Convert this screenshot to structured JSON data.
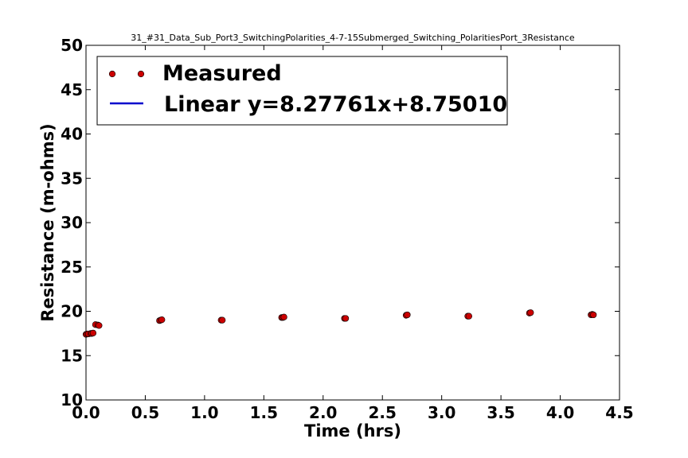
{
  "chart_data": {
    "type": "scatter",
    "title": "31_#31_Data_Sub_Port3_SwitchingPolarities_4-7-15Submerged_Switching_PolaritiesPort_3Resistance",
    "xlabel": "Time (hrs)",
    "ylabel": "Resistance (m-ohms)",
    "xlim": [
      0.0,
      4.5
    ],
    "ylim": [
      10,
      50
    ],
    "x_ticks": [
      "0.0",
      "0.5",
      "1.0",
      "1.5",
      "2.0",
      "2.5",
      "3.0",
      "3.5",
      "4.0",
      "4.5"
    ],
    "y_ticks": [
      "10",
      "15",
      "20",
      "25",
      "30",
      "35",
      "40",
      "45",
      "50"
    ],
    "grid": false,
    "legend_position": "top-left",
    "series": [
      {
        "name": "Measured",
        "marker": "circle",
        "color": "#cc0000",
        "points": [
          {
            "x": 0.0,
            "y": 17.4
          },
          {
            "x": 0.01,
            "y": 17.45
          },
          {
            "x": 0.02,
            "y": 17.45
          },
          {
            "x": 0.04,
            "y": 17.5
          },
          {
            "x": 0.05,
            "y": 17.5
          },
          {
            "x": 0.06,
            "y": 17.55
          },
          {
            "x": 0.08,
            "y": 18.5
          },
          {
            "x": 0.1,
            "y": 18.45
          },
          {
            "x": 0.11,
            "y": 18.4
          },
          {
            "x": 0.62,
            "y": 18.95
          },
          {
            "x": 0.63,
            "y": 19.0
          },
          {
            "x": 0.64,
            "y": 19.05
          },
          {
            "x": 1.14,
            "y": 19.0
          },
          {
            "x": 1.15,
            "y": 19.0
          },
          {
            "x": 1.65,
            "y": 19.3
          },
          {
            "x": 1.66,
            "y": 19.3
          },
          {
            "x": 1.67,
            "y": 19.35
          },
          {
            "x": 2.18,
            "y": 19.2
          },
          {
            "x": 2.19,
            "y": 19.2
          },
          {
            "x": 2.7,
            "y": 19.55
          },
          {
            "x": 2.71,
            "y": 19.6
          },
          {
            "x": 3.22,
            "y": 19.45
          },
          {
            "x": 3.23,
            "y": 19.45
          },
          {
            "x": 3.74,
            "y": 19.8
          },
          {
            "x": 3.75,
            "y": 19.85
          },
          {
            "x": 4.26,
            "y": 19.6
          },
          {
            "x": 4.27,
            "y": 19.65
          },
          {
            "x": 4.28,
            "y": 19.6
          }
        ]
      },
      {
        "name": "Linear y=8.27761x+8.75010",
        "line": true,
        "color": "#0000cc"
      }
    ]
  }
}
